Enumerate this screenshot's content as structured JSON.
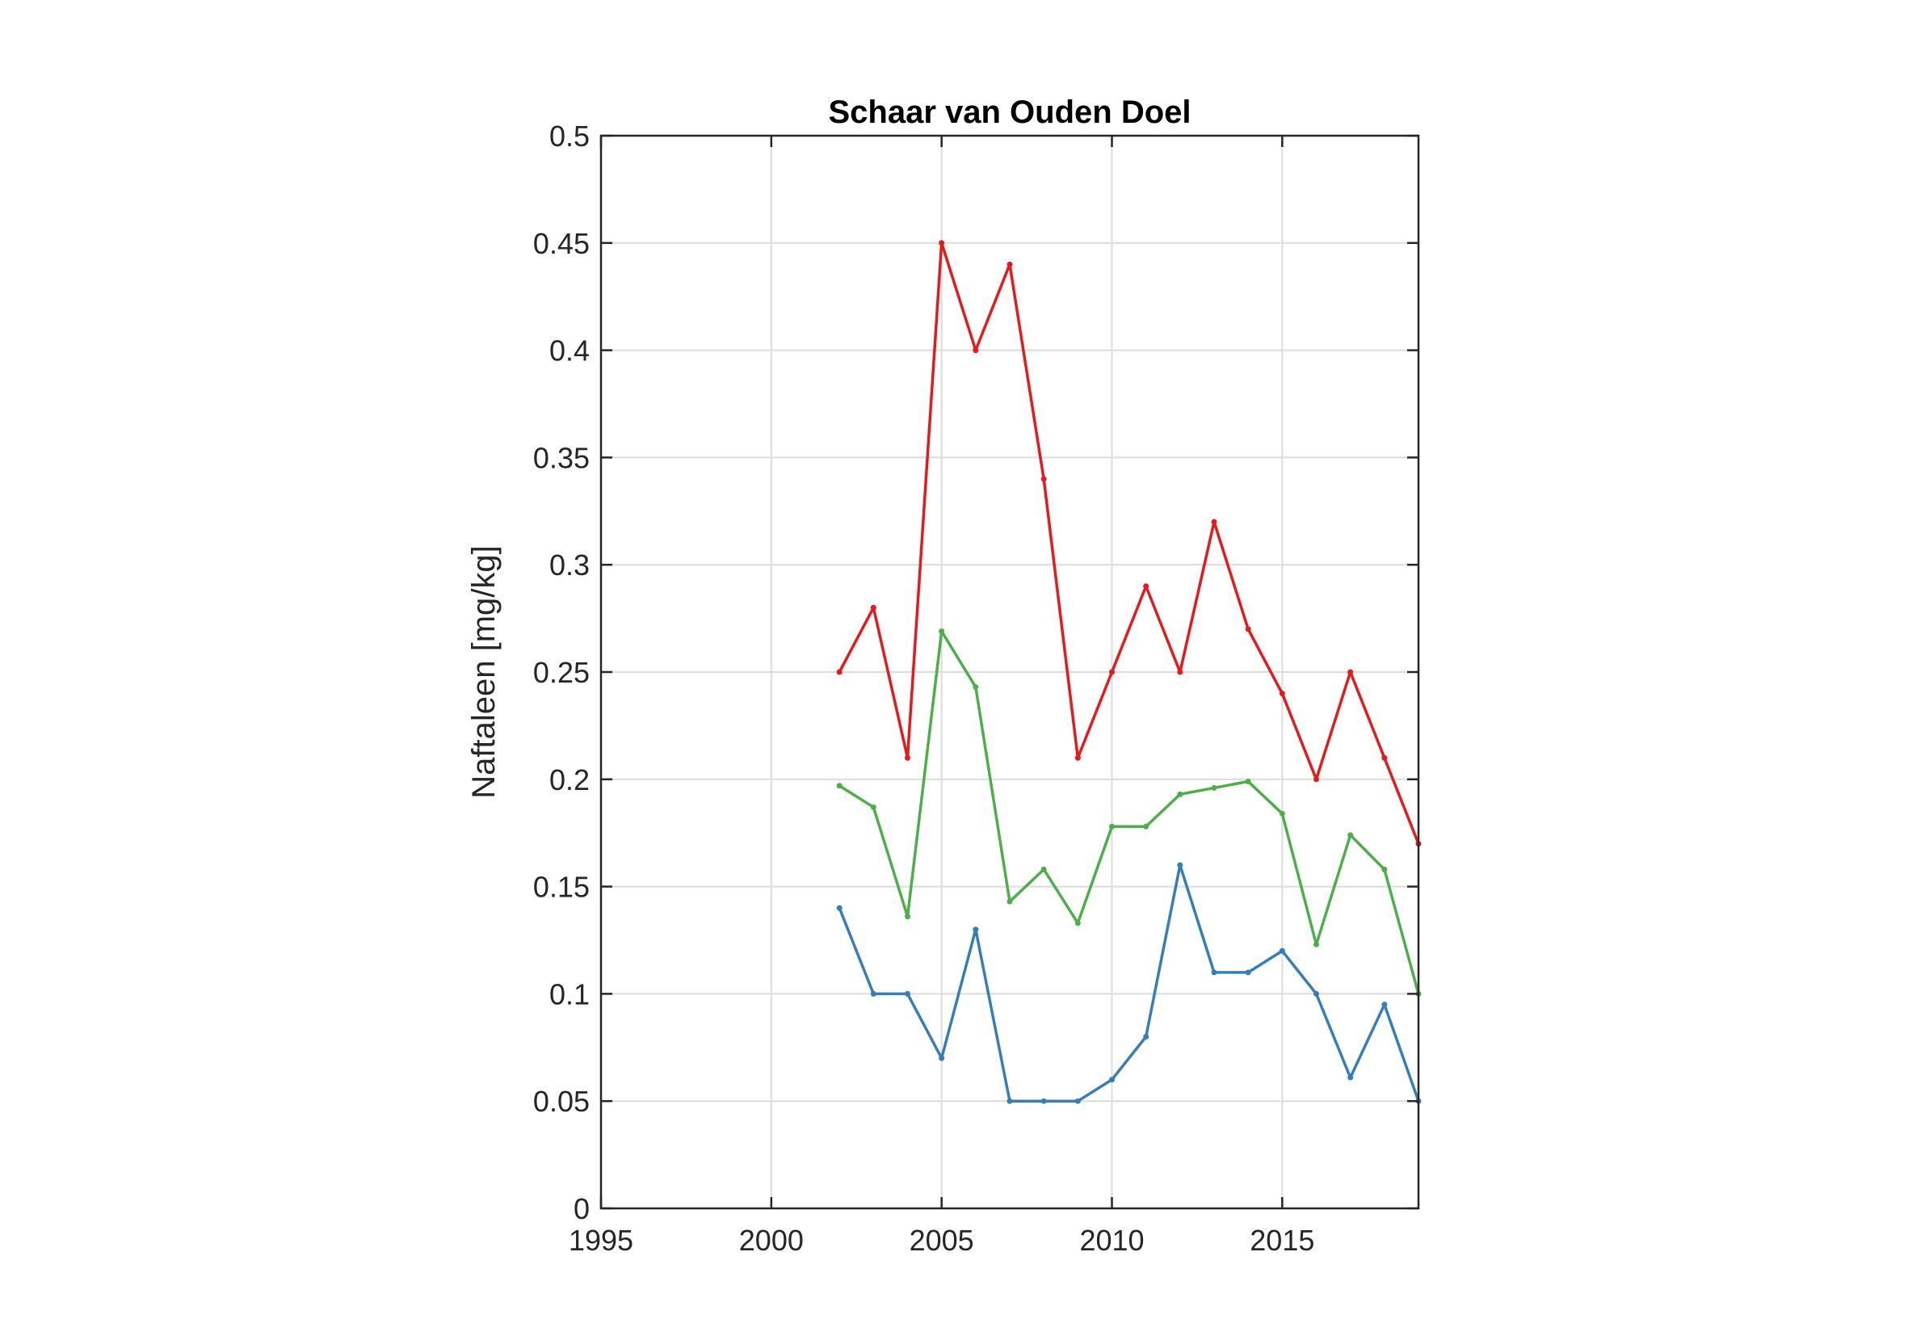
{
  "chart_data": {
    "type": "line",
    "title": "Schaar van Ouden Doel",
    "xlabel": "",
    "ylabel": "Naftaleen [mg/kg]",
    "xlim": [
      1995,
      2019
    ],
    "ylim": [
      0,
      0.5
    ],
    "x_ticks": [
      1995,
      2000,
      2005,
      2010,
      2015
    ],
    "x_tick_labels": [
      "1995",
      "2000",
      "2005",
      "2010",
      "2015"
    ],
    "y_ticks": [
      0,
      0.05,
      0.1,
      0.15,
      0.2,
      0.25,
      0.3,
      0.35,
      0.4,
      0.45,
      0.5
    ],
    "y_tick_labels": [
      "0",
      "0.05",
      "0.1",
      "0.15",
      "0.2",
      "0.25",
      "0.3",
      "0.35",
      "0.4",
      "0.45",
      "0.5"
    ],
    "grid": true,
    "x": [
      2002,
      2003,
      2004,
      2005,
      2006,
      2007,
      2008,
      2009,
      2010,
      2011,
      2012,
      2013,
      2014,
      2015,
      2016,
      2017,
      2018,
      2019
    ],
    "series": [
      {
        "color": "#e41a1c",
        "values": [
          0.25,
          0.28,
          0.21,
          0.45,
          0.4,
          0.44,
          0.34,
          0.21,
          0.25,
          0.29,
          0.25,
          0.32,
          0.27,
          0.24,
          0.2,
          0.25,
          0.21,
          0.17
        ]
      },
      {
        "color": "#4daf4a",
        "values": [
          0.197,
          0.187,
          0.136,
          0.269,
          0.243,
          0.143,
          0.158,
          0.133,
          0.178,
          0.178,
          0.193,
          0.196,
          0.199,
          0.184,
          0.123,
          0.174,
          0.158,
          0.1
        ]
      },
      {
        "color": "#377eb8",
        "values": [
          0.14,
          0.1,
          0.1,
          0.07,
          0.13,
          0.05,
          0.05,
          0.05,
          0.06,
          0.08,
          0.16,
          0.11,
          0.11,
          0.12,
          0.1,
          0.061,
          0.095,
          0.05
        ]
      }
    ]
  }
}
